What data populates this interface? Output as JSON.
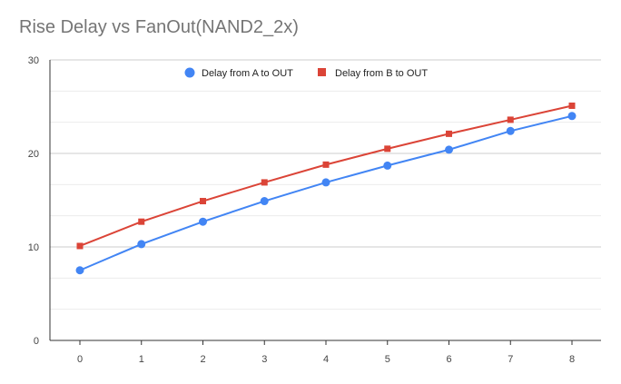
{
  "chart_data": {
    "type": "line",
    "title": "Rise Delay vs FanOut(NAND2_2x)",
    "xlabel": "",
    "ylabel": "",
    "categories": [
      "0",
      "1",
      "2",
      "3",
      "4",
      "5",
      "6",
      "7",
      "8"
    ],
    "x": [
      0,
      1,
      2,
      3,
      4,
      5,
      6,
      7,
      8
    ],
    "ylim": [
      0,
      30
    ],
    "yticks": [
      0,
      10,
      20,
      30
    ],
    "grid": true,
    "legend_position": "top",
    "series": [
      {
        "name": "Delay from A to OUT",
        "color": "#4285f4",
        "marker": "circle",
        "values": [
          7.5,
          10.3,
          12.7,
          14.9,
          16.9,
          18.7,
          20.4,
          22.4,
          24.0
        ]
      },
      {
        "name": "Delay from B to OUT",
        "color": "#db4437",
        "marker": "square",
        "values": [
          10.1,
          12.7,
          14.9,
          16.9,
          18.8,
          20.5,
          22.1,
          23.6,
          25.1
        ]
      }
    ]
  }
}
